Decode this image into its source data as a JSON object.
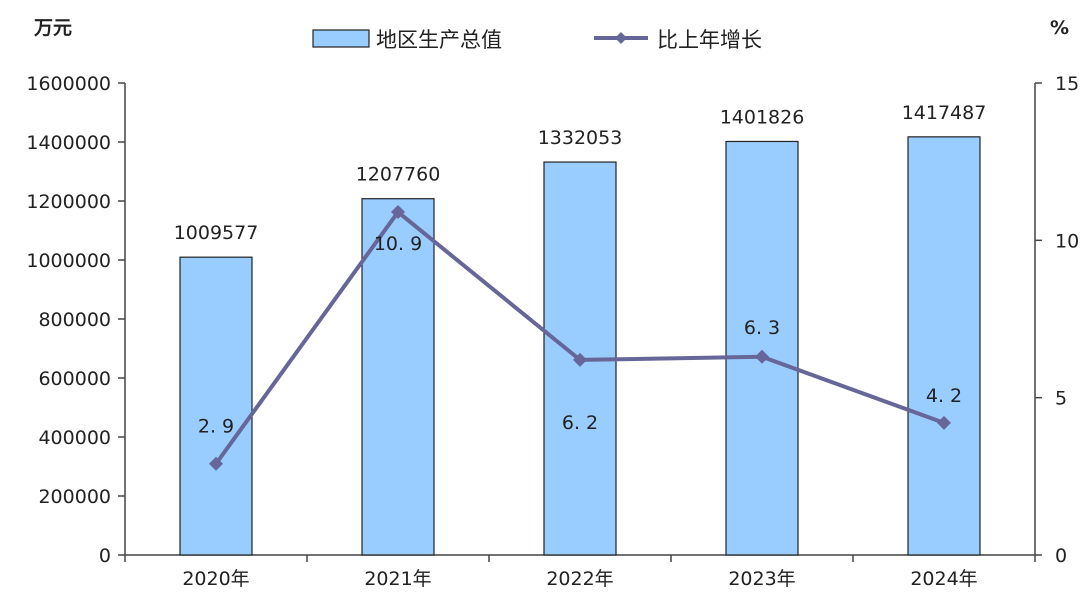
{
  "chart_data": {
    "type": "bar",
    "categories": [
      "2020年",
      "2021年",
      "2022年",
      "2023年",
      "2024年"
    ],
    "left_unit": "万元",
    "right_unit": "%",
    "left_ylim": [
      0,
      1600000
    ],
    "left_ticks": [
      0,
      200000,
      400000,
      600000,
      800000,
      1000000,
      1200000,
      1400000,
      1600000
    ],
    "right_ylim": [
      0,
      15
    ],
    "right_ticks": [
      0,
      5,
      10,
      15
    ],
    "series": [
      {
        "name": "地区生产总值",
        "type": "bar",
        "axis": "left",
        "values": [
          1009577,
          1207760,
          1332053,
          1401826,
          1417487
        ],
        "labels": [
          "1009577",
          "1207760",
          "1332053",
          "1401826",
          "1417487"
        ],
        "color": "#99ccff"
      },
      {
        "name": "比上年增长",
        "type": "line",
        "axis": "right",
        "values": [
          2.9,
          10.9,
          6.2,
          6.3,
          4.2
        ],
        "labels": [
          "2. 9",
          "10. 9",
          "6. 2",
          "6. 3",
          "4. 2"
        ],
        "color": "#666699"
      }
    ],
    "legend": "top-center",
    "grid": false
  }
}
